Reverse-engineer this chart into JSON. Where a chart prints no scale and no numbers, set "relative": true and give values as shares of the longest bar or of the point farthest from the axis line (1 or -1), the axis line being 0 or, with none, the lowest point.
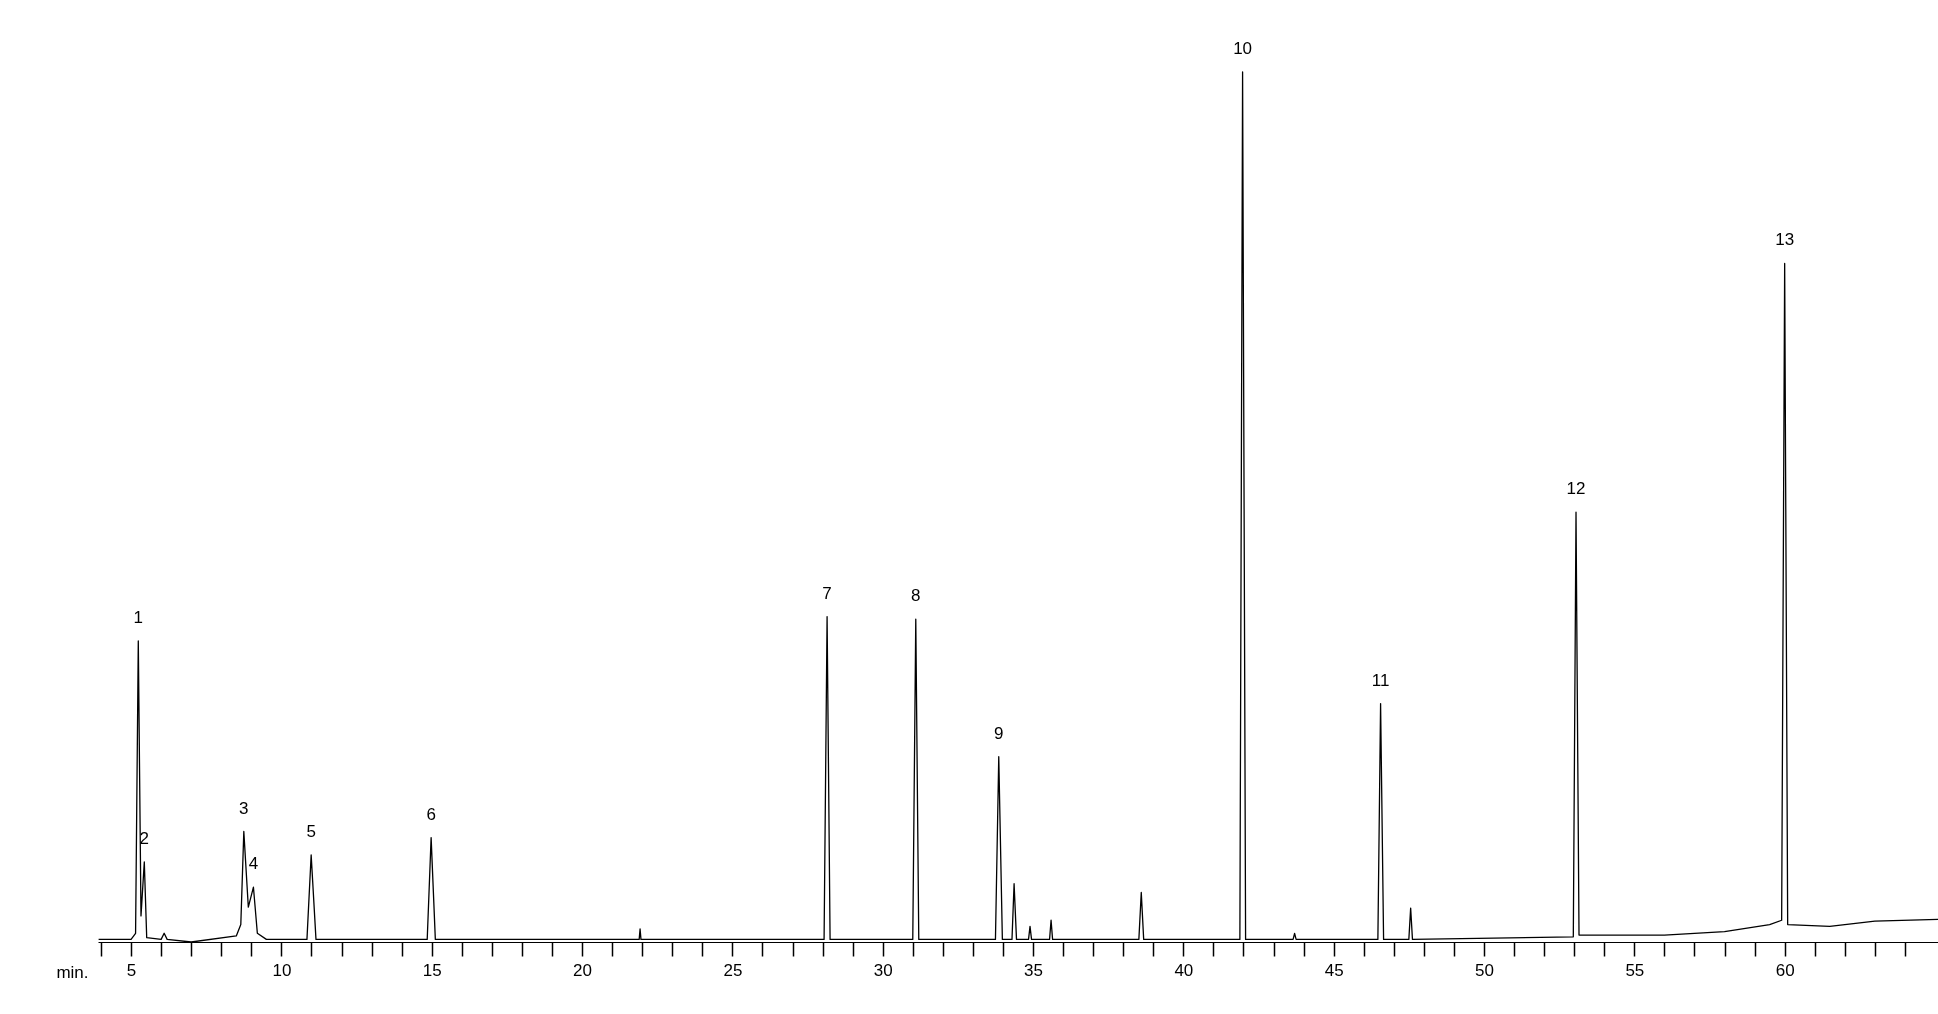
{
  "chart_data": {
    "type": "line",
    "relative": true,
    "xlabel": "min.",
    "grid": false,
    "legend": false,
    "marker": "none",
    "line_style": "solid",
    "xlim": [
      3.9,
      65.1
    ],
    "xticks": [
      {
        "value": 4,
        "label": null
      },
      5,
      {
        "value": 6,
        "label": null
      },
      {
        "value": 7,
        "label": null
      },
      {
        "value": 8,
        "label": null
      },
      {
        "value": 9,
        "label": null
      },
      10,
      {
        "value": 11,
        "label": null
      },
      {
        "value": 12,
        "label": null
      },
      {
        "value": 13,
        "label": null
      },
      {
        "value": 14,
        "label": null
      },
      15,
      {
        "value": 16,
        "label": null
      },
      {
        "value": 17,
        "label": null
      },
      {
        "value": 18,
        "label": null
      },
      {
        "value": 19,
        "label": null
      },
      20,
      {
        "value": 21,
        "label": null
      },
      {
        "value": 22,
        "label": null
      },
      {
        "value": 23,
        "label": null
      },
      {
        "value": 24,
        "label": null
      },
      25,
      {
        "value": 26,
        "label": null
      },
      {
        "value": 27,
        "label": null
      },
      {
        "value": 28,
        "label": null
      },
      {
        "value": 29,
        "label": null
      },
      30,
      {
        "value": 31,
        "label": null
      },
      {
        "value": 32,
        "label": null
      },
      {
        "value": 33,
        "label": null
      },
      {
        "value": 34,
        "label": null
      },
      35,
      {
        "value": 36,
        "label": null
      },
      {
        "value": 37,
        "label": null
      },
      {
        "value": 38,
        "label": null
      },
      {
        "value": 39,
        "label": null
      },
      40,
      {
        "value": 41,
        "label": null
      },
      {
        "value": 42,
        "label": null
      },
      {
        "value": 43,
        "label": null
      },
      {
        "value": 44,
        "label": null
      },
      45,
      {
        "value": 46,
        "label": null
      },
      {
        "value": 47,
        "label": null
      },
      {
        "value": 48,
        "label": null
      },
      {
        "value": 49,
        "label": null
      },
      50,
      {
        "value": 51,
        "label": null
      },
      {
        "value": 52,
        "label": null
      },
      {
        "value": 53,
        "label": null
      },
      {
        "value": 54,
        "label": null
      },
      55,
      {
        "value": 56,
        "label": null
      },
      {
        "value": 57,
        "label": null
      },
      {
        "value": 58,
        "label": null
      },
      {
        "value": 59,
        "label": null
      },
      60,
      {
        "value": 61,
        "label": null
      },
      {
        "value": 62,
        "label": null
      },
      {
        "value": 63,
        "label": null
      },
      {
        "value": 64,
        "label": null
      }
    ],
    "series": [
      {
        "color": "#000000",
        "x": [
          3.92,
          5.0,
          5.15,
          5.24,
          5.33,
          5.44,
          5.52,
          6.0,
          6.1,
          6.2,
          7.0,
          8.5,
          8.65,
          8.75,
          8.9,
          9.07,
          9.2,
          9.5,
          10.85,
          10.99,
          11.15,
          14.85,
          14.98,
          15.12,
          21.9,
          21.93,
          21.96,
          28.05,
          28.15,
          28.25,
          31.0,
          31.1,
          31.2,
          33.75,
          33.86,
          33.98,
          34.3,
          34.37,
          34.45,
          34.85,
          34.9,
          34.95,
          35.55,
          35.6,
          35.65,
          38.52,
          38.6,
          38.68,
          41.88,
          41.97,
          42.07,
          43.65,
          43.7,
          43.75,
          46.47,
          46.56,
          46.66,
          47.5,
          47.56,
          47.62,
          52.97,
          53.06,
          53.16,
          56,
          58,
          59.5,
          59.9,
          60.0,
          60.1,
          61.5,
          63,
          65.1
        ],
        "values": [
          0.003,
          0.003,
          0.01,
          0.346,
          0.03,
          0.092,
          0.005,
          0.003,
          0.01,
          0.003,
          0.0,
          0.007,
          0.02,
          0.127,
          0.04,
          0.063,
          0.01,
          0.003,
          0.003,
          0.1,
          0.003,
          0.003,
          0.12,
          0.003,
          0.003,
          0.015,
          0.003,
          0.003,
          0.374,
          0.003,
          0.003,
          0.371,
          0.003,
          0.003,
          0.213,
          0.003,
          0.003,
          0.067,
          0.003,
          0.003,
          0.018,
          0.003,
          0.003,
          0.025,
          0.003,
          0.003,
          0.057,
          0.003,
          0.003,
          1,
          0.003,
          0.003,
          0.01,
          0.003,
          0.003,
          0.274,
          0.003,
          0.003,
          0.039,
          0.003,
          0.006,
          0.494,
          0.008,
          0.008,
          0.012,
          0.02,
          0.025,
          0.78,
          0.02,
          0.018,
          0.024,
          0.026
        ]
      }
    ],
    "annotations": [
      {
        "text": "1",
        "x": 5.24,
        "y": 0.346
      },
      {
        "text": "2",
        "x": 5.44,
        "y": 0.092
      },
      {
        "text": "3",
        "x": 8.75,
        "y": 0.127
      },
      {
        "text": "4",
        "x": 9.07,
        "y": 0.063
      },
      {
        "text": "5",
        "x": 10.99,
        "y": 0.1
      },
      {
        "text": "6",
        "x": 14.98,
        "y": 0.12
      },
      {
        "text": "7",
        "x": 28.15,
        "y": 0.374
      },
      {
        "text": "8",
        "x": 31.1,
        "y": 0.371
      },
      {
        "text": "9",
        "x": 33.86,
        "y": 0.213
      },
      {
        "text": "10",
        "x": 41.97,
        "y": 1
      },
      {
        "text": "11",
        "x": 46.56,
        "y": 0.274
      },
      {
        "text": "12",
        "x": 53.06,
        "y": 0.494
      },
      {
        "text": "13",
        "x": 60.0,
        "y": 0.78
      }
    ]
  }
}
